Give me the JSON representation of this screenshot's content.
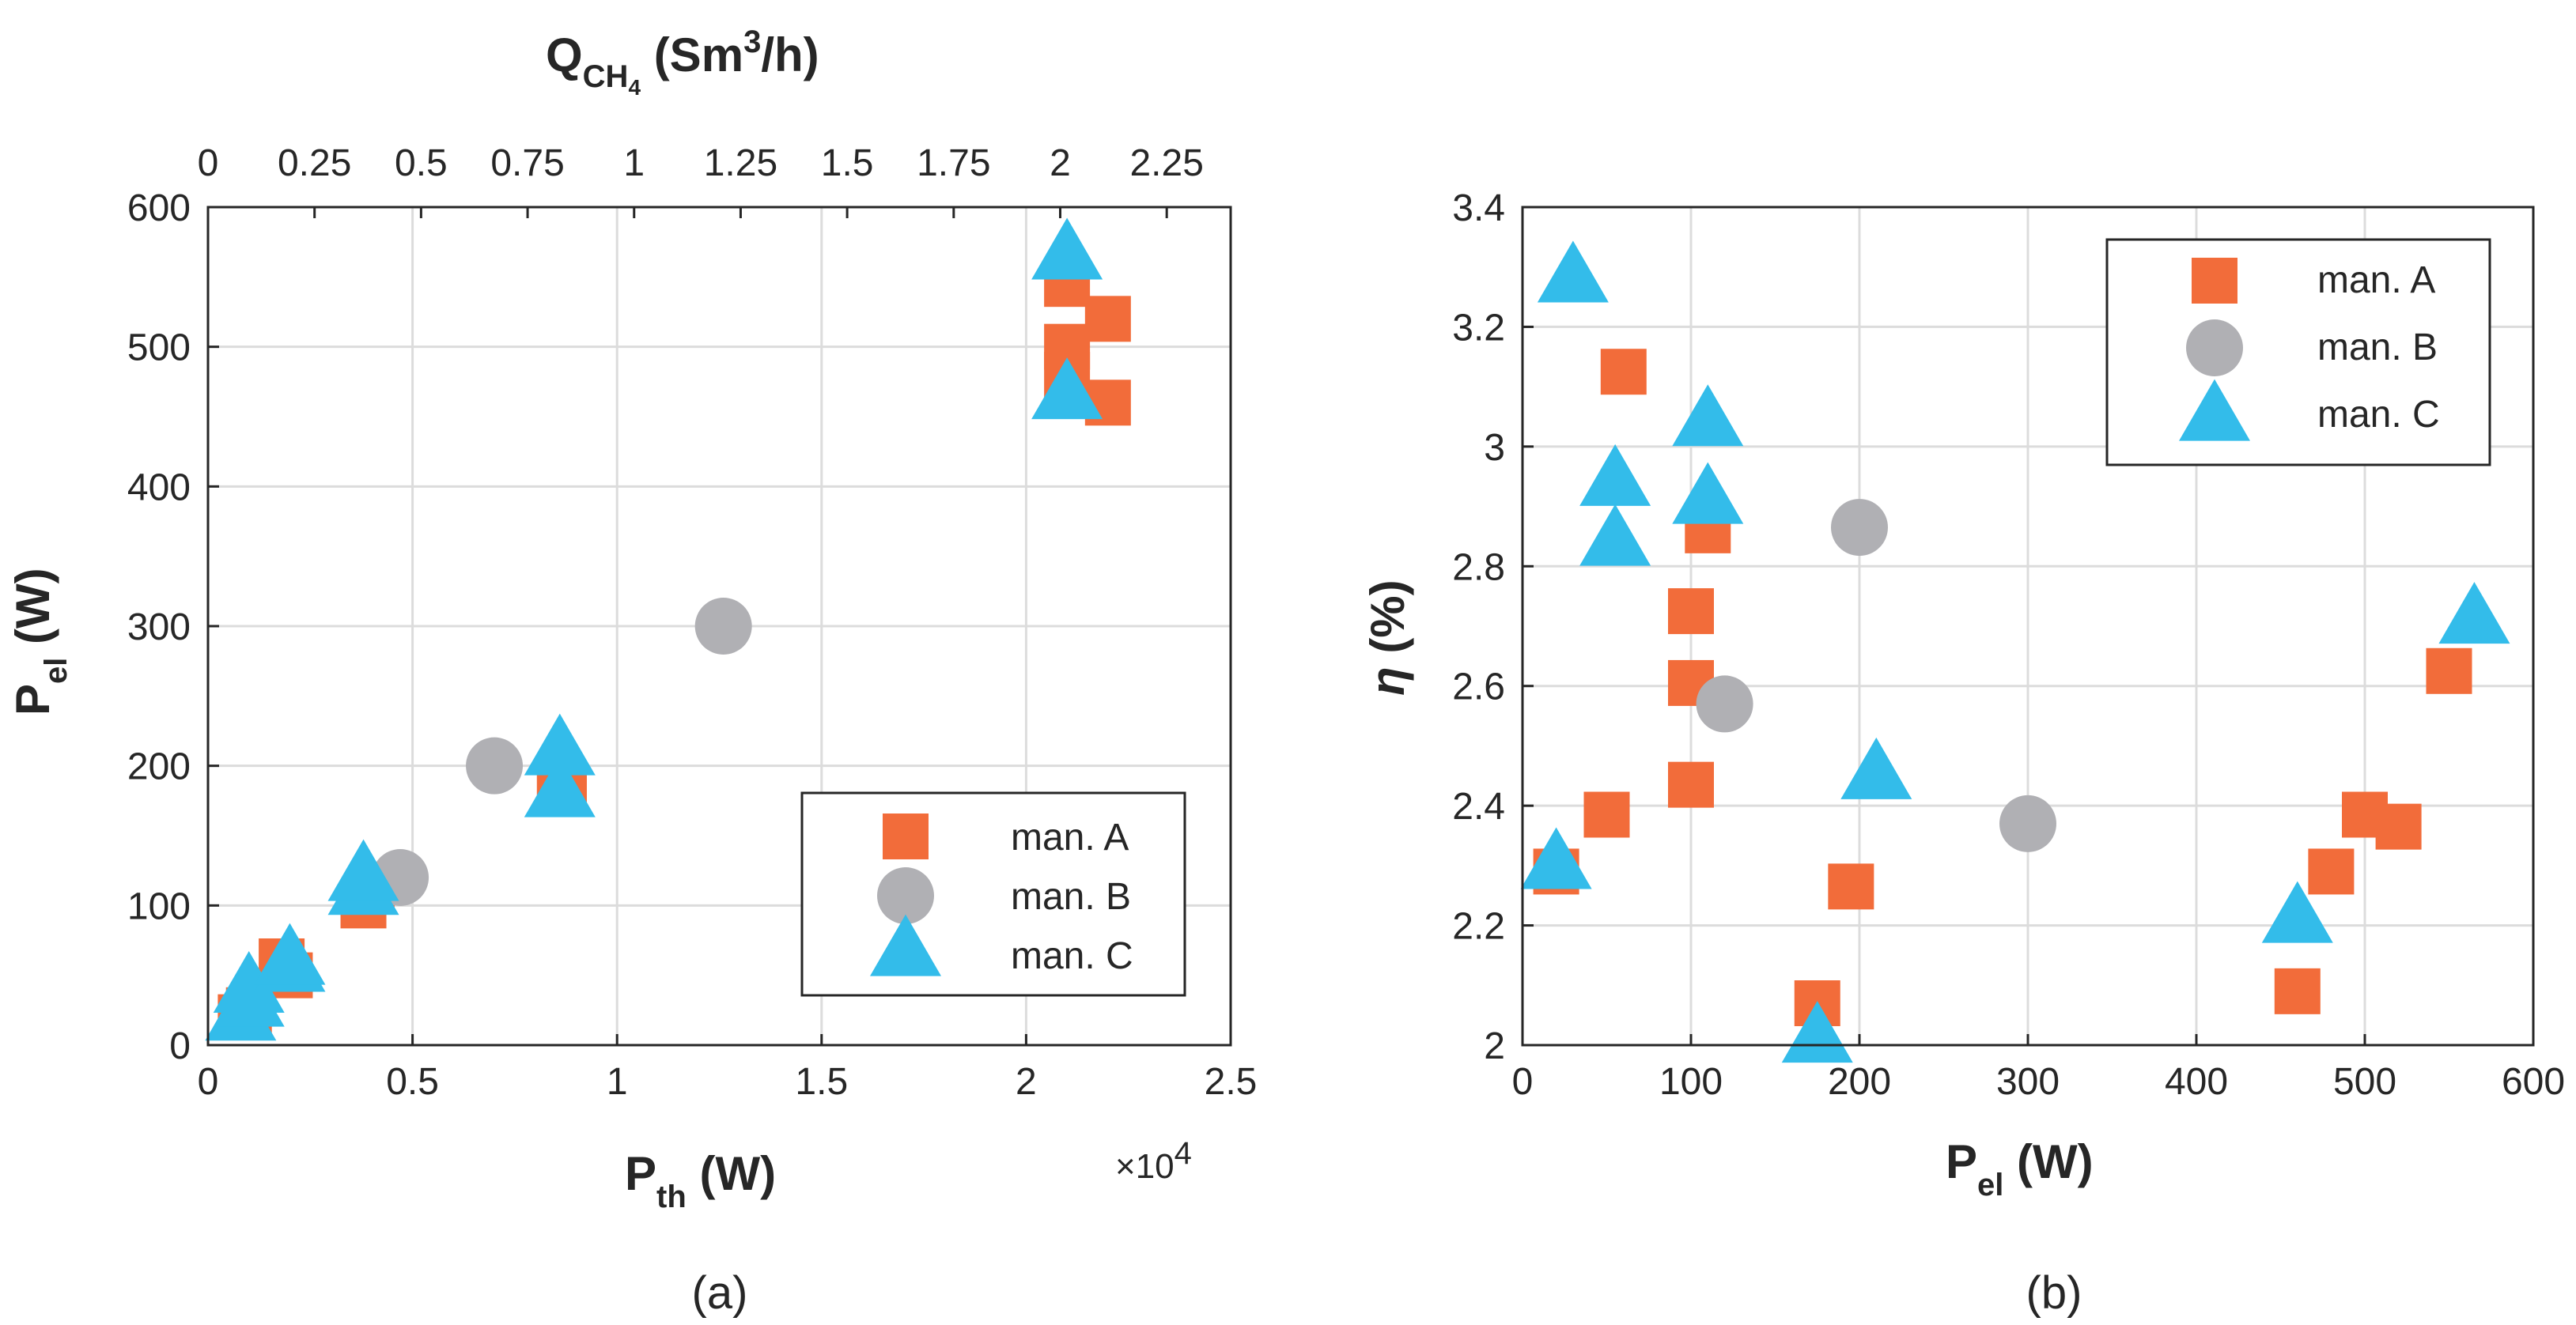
{
  "chart_data": [
    {
      "type": "scatter",
      "caption": "(a)",
      "xlabel": {
        "main": "P",
        "sub": "th",
        "unit": " (W)"
      },
      "ylabel": {
        "main": "P",
        "sub": "el",
        "unit": " (W)"
      },
      "top_xlabel": {
        "main": "Q",
        "sub": "CH",
        "sub2": "4",
        "unit_pre": " (Sm",
        "sup": "3",
        "unit_post": "/h)"
      },
      "x_exponent": {
        "base": "×10",
        "exp": "4"
      },
      "xlim": [
        0,
        25000
      ],
      "ylim": [
        0,
        600
      ],
      "xticks": [
        0,
        5000,
        10000,
        15000,
        20000,
        25000
      ],
      "xtick_labels": [
        "0",
        "0.5",
        "1",
        "1.5",
        "2",
        "2.5"
      ],
      "yticks": [
        0,
        100,
        200,
        300,
        400,
        500,
        600
      ],
      "ytick_labels": [
        "0",
        "100",
        "200",
        "300",
        "400",
        "500",
        "600"
      ],
      "top_xlim": [
        0,
        2.4
      ],
      "top_xticks": [
        0,
        0.25,
        0.5,
        0.75,
        1,
        1.25,
        1.5,
        1.75,
        2,
        2.25
      ],
      "top_xtick_labels": [
        "0",
        "0.25",
        "0.5",
        "0.75",
        "1",
        "1.25",
        "1.5",
        "1.75",
        "2",
        "2.25"
      ],
      "grid": true,
      "legend": {
        "position": "lower-right",
        "entries": [
          "man. A",
          "man. B",
          "man. C"
        ]
      },
      "series": [
        {
          "name": "man. A",
          "marker": "square",
          "color": "#f26c3a",
          "points": [
            [
              800,
              20
            ],
            [
              1000,
              25
            ],
            [
              1800,
              60
            ],
            [
              2000,
              50
            ],
            [
              3800,
              100
            ],
            [
              4000,
              110
            ],
            [
              8600,
              190
            ],
            [
              8700,
              180
            ],
            [
              21000,
              545
            ],
            [
              21000,
              500
            ],
            [
              21000,
              480
            ],
            [
              22000,
              520
            ],
            [
              22000,
              460
            ]
          ]
        },
        {
          "name": "man. B",
          "marker": "circle",
          "color": "#b0b0b4",
          "points": [
            [
              4700,
              120
            ],
            [
              7000,
              200
            ],
            [
              12600,
              300
            ]
          ]
        },
        {
          "name": "man. C",
          "marker": "triangle",
          "color": "#33bcea",
          "points": [
            [
              800,
              20
            ],
            [
              1000,
              30
            ],
            [
              1000,
              40
            ],
            [
              2000,
              55
            ],
            [
              2000,
              60
            ],
            [
              3800,
              110
            ],
            [
              3800,
              120
            ],
            [
              8600,
              210
            ],
            [
              8600,
              180
            ],
            [
              21000,
              565
            ],
            [
              21000,
              465
            ]
          ]
        }
      ]
    },
    {
      "type": "scatter",
      "caption": "(b)",
      "xlabel": {
        "main": "P",
        "sub": "el",
        "unit": " (W)"
      },
      "ylabel": {
        "main": "η",
        "unit": " (%)"
      },
      "xlim": [
        0,
        600
      ],
      "ylim": [
        2,
        3.4
      ],
      "xticks": [
        0,
        100,
        200,
        300,
        400,
        500,
        600
      ],
      "xtick_labels": [
        "0",
        "100",
        "200",
        "300",
        "400",
        "500",
        "600"
      ],
      "yticks": [
        2,
        2.2,
        2.4,
        2.6,
        2.8,
        3,
        3.2,
        3.4
      ],
      "ytick_labels": [
        "2",
        "2.2",
        "2.4",
        "2.6",
        "2.8",
        "3",
        "3.2",
        "3.4"
      ],
      "grid": true,
      "legend": {
        "position": "top-right",
        "entries": [
          "man. A",
          "man. B",
          "man. C"
        ]
      },
      "series": [
        {
          "name": "man. A",
          "marker": "square",
          "color": "#f26c3a",
          "points": [
            [
              20,
              2.29
            ],
            [
              50,
              2.385
            ],
            [
              60,
              3.125
            ],
            [
              100,
              2.725
            ],
            [
              100,
              2.605
            ],
            [
              100,
              2.435
            ],
            [
              110,
              2.86
            ],
            [
              175,
              2.07
            ],
            [
              195,
              2.265
            ],
            [
              460,
              2.09
            ],
            [
              480,
              2.29
            ],
            [
              500,
              2.385
            ],
            [
              520,
              2.365
            ],
            [
              550,
              2.625
            ]
          ]
        },
        {
          "name": "man. B",
          "marker": "circle",
          "color": "#b0b0b4",
          "points": [
            [
              120,
              2.57
            ],
            [
              200,
              2.865
            ],
            [
              300,
              2.37
            ]
          ]
        },
        {
          "name": "man. C",
          "marker": "triangle",
          "color": "#33bcea",
          "points": [
            [
              20,
              2.3
            ],
            [
              30,
              3.28
            ],
            [
              55,
              2.94
            ],
            [
              55,
              2.84
            ],
            [
              110,
              3.04
            ],
            [
              110,
              2.91
            ],
            [
              175,
              2.01
            ],
            [
              210,
              2.45
            ],
            [
              460,
              2.21
            ],
            [
              565,
              2.71
            ]
          ]
        }
      ]
    }
  ]
}
